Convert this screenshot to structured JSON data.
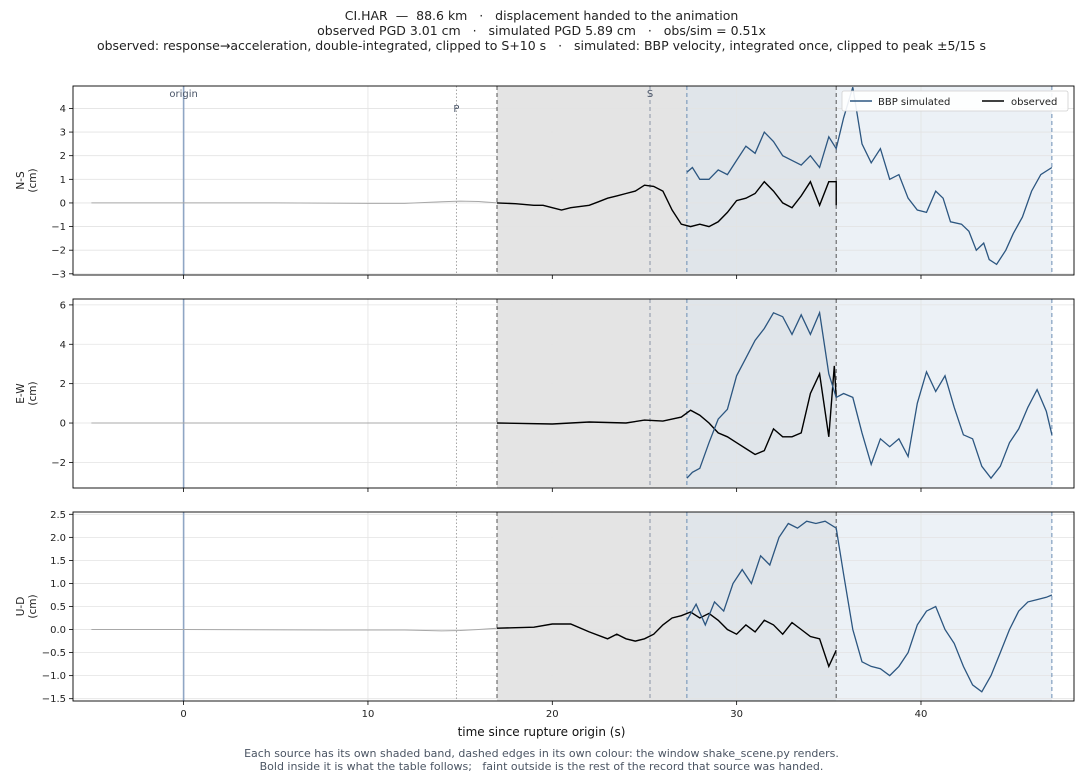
{
  "header": {
    "line1": "CI.HAR  —  88.6 km   ·   displacement handed to the animation",
    "line2": "observed PGD 3.01 cm   ·   simulated PGD 5.89 cm   ·   obs/sim = 0.51x",
    "line3": "observed: response→acceleration, double-integrated, clipped to S+10 s   ·   simulated: BBP velocity, integrated once, clipped to peak ±5/15 s"
  },
  "footer": {
    "line1": "Each source has its own shaded band, dashed edges in its own colour: the window shake_scene.py renders.",
    "line2": "Bold inside it is what the table follows;   faint outside is the rest of the record that source was handed."
  },
  "colors": {
    "simulated": "#2c5680",
    "observed": "#000000",
    "observed_faint": "#a8a8a8",
    "obs_band": "#e4e4e4",
    "sim_band": "#dde5ee",
    "origin_line": "#8fa6c4",
    "p_line": "#9b9b9b",
    "s_line": "#8a93a6",
    "grid": "#e3e3e3"
  },
  "chart_data": {
    "type": "line",
    "xlabel": "time since rupture origin (s)",
    "xlim": [
      -6,
      48.3
    ],
    "xticks": [
      0,
      10,
      20,
      30,
      40
    ],
    "markers": [
      {
        "label": "origin",
        "t": 0
      },
      {
        "label": "P",
        "t": 14.8
      },
      {
        "label": "S",
        "t": 25.3
      }
    ],
    "observed_window": [
      17.0,
      35.4
    ],
    "simulated_window": [
      27.3,
      47.1
    ],
    "legend": {
      "position": "top-right",
      "entries": [
        "BBP simulated",
        "observed"
      ]
    },
    "panels": [
      {
        "ylabel_line1": "N-S",
        "ylabel_line2": "(cm)",
        "ylim": [
          -3.05,
          4.95
        ],
        "yticks": [
          -3,
          -2,
          -1,
          0,
          1,
          2,
          3,
          4
        ],
        "ytick_labels": [
          "−3",
          "−2",
          "−1",
          "0",
          "1",
          "2",
          "3",
          "4"
        ],
        "observed": [
          [
            -5,
            0
          ],
          [
            0,
            0
          ],
          [
            5,
            0
          ],
          [
            10,
            -0.02
          ],
          [
            12,
            -0.02
          ],
          [
            14,
            0.05
          ],
          [
            15,
            0.08
          ],
          [
            16,
            0.06
          ],
          [
            17,
            0
          ],
          [
            18,
            -0.03
          ],
          [
            19,
            -0.1
          ],
          [
            19.5,
            -0.1
          ],
          [
            20,
            -0.2
          ],
          [
            20.5,
            -0.3
          ],
          [
            21,
            -0.2
          ],
          [
            22,
            -0.1
          ],
          [
            22.5,
            0.05
          ],
          [
            23,
            0.2
          ],
          [
            23.5,
            0.3
          ],
          [
            24,
            0.4
          ],
          [
            24.5,
            0.5
          ],
          [
            25,
            0.75
          ],
          [
            25.5,
            0.7
          ],
          [
            26,
            0.5
          ],
          [
            26.5,
            -0.3
          ],
          [
            27,
            -0.9
          ],
          [
            27.5,
            -1
          ],
          [
            28,
            -0.9
          ],
          [
            28.5,
            -1
          ],
          [
            29,
            -0.8
          ],
          [
            29.5,
            -0.4
          ],
          [
            30,
            0.1
          ],
          [
            30.5,
            0.2
          ],
          [
            31,
            0.4
          ],
          [
            31.5,
            0.9
          ],
          [
            32,
            0.5
          ],
          [
            32.5,
            0
          ],
          [
            33,
            -0.2
          ],
          [
            33.5,
            0.3
          ],
          [
            34,
            0.9
          ],
          [
            34.5,
            -0.1
          ],
          [
            35,
            0.9
          ],
          [
            35.4,
            0.9
          ],
          [
            35.4,
            -0.1
          ]
        ],
        "simulated": [
          [
            27.3,
            1.3
          ],
          [
            27.6,
            1.5
          ],
          [
            28,
            1
          ],
          [
            28.5,
            1
          ],
          [
            29,
            1.4
          ],
          [
            29.5,
            1.2
          ],
          [
            30,
            1.8
          ],
          [
            30.5,
            2.4
          ],
          [
            31,
            2.1
          ],
          [
            31.5,
            3
          ],
          [
            32,
            2.6
          ],
          [
            32.5,
            2
          ],
          [
            33,
            1.8
          ],
          [
            33.5,
            1.6
          ],
          [
            34,
            2
          ],
          [
            34.5,
            1.5
          ],
          [
            35,
            2.8
          ],
          [
            35.4,
            2.3
          ],
          [
            35.8,
            3.6
          ],
          [
            36.3,
            4.9
          ],
          [
            36.8,
            2.5
          ],
          [
            37.3,
            1.7
          ],
          [
            37.8,
            2.3
          ],
          [
            38.3,
            1
          ],
          [
            38.8,
            1.2
          ],
          [
            39.3,
            0.2
          ],
          [
            39.8,
            -0.3
          ],
          [
            40.3,
            -0.4
          ],
          [
            40.8,
            0.5
          ],
          [
            41.2,
            0.2
          ],
          [
            41.6,
            -0.8
          ],
          [
            42.2,
            -0.9
          ],
          [
            42.6,
            -1.2
          ],
          [
            43,
            -2
          ],
          [
            43.4,
            -1.7
          ],
          [
            43.7,
            -2.4
          ],
          [
            44.1,
            -2.6
          ],
          [
            44.6,
            -2
          ],
          [
            45,
            -1.3
          ],
          [
            45.5,
            -0.6
          ],
          [
            46,
            0.5
          ],
          [
            46.5,
            1.2
          ],
          [
            47.1,
            1.5
          ]
        ]
      },
      {
        "ylabel_line1": "E-W",
        "ylabel_line2": "(cm)",
        "ylim": [
          -3.3,
          6.3
        ],
        "yticks": [
          -2,
          0,
          2,
          4,
          6
        ],
        "ytick_labels": [
          "−2",
          "0",
          "2",
          "4",
          "6"
        ],
        "observed": [
          [
            -5,
            0
          ],
          [
            0,
            0
          ],
          [
            10,
            0
          ],
          [
            17,
            0
          ],
          [
            20,
            -0.05
          ],
          [
            22,
            0.05
          ],
          [
            24,
            0
          ],
          [
            25,
            0.15
          ],
          [
            26,
            0.1
          ],
          [
            27,
            0.3
          ],
          [
            27.5,
            0.65
          ],
          [
            28,
            0.4
          ],
          [
            28.5,
            0
          ],
          [
            29,
            -0.5
          ],
          [
            29.5,
            -0.7
          ],
          [
            30,
            -1
          ],
          [
            30.5,
            -1.3
          ],
          [
            31,
            -1.6
          ],
          [
            31.5,
            -1.4
          ],
          [
            32,
            -0.3
          ],
          [
            32.5,
            -0.7
          ],
          [
            33,
            -0.7
          ],
          [
            33.5,
            -0.5
          ],
          [
            34,
            1.5
          ],
          [
            34.5,
            2.5
          ],
          [
            35,
            -0.7
          ],
          [
            35.3,
            2.9
          ],
          [
            35.4,
            1.3
          ]
        ],
        "simulated": [
          [
            27.3,
            -2.8
          ],
          [
            27.6,
            -2.5
          ],
          [
            28,
            -2.3
          ],
          [
            28.5,
            -1
          ],
          [
            29,
            0.2
          ],
          [
            29.5,
            0.7
          ],
          [
            30,
            2.4
          ],
          [
            30.5,
            3.3
          ],
          [
            31,
            4.2
          ],
          [
            31.5,
            4.8
          ],
          [
            32,
            5.6
          ],
          [
            32.5,
            5.4
          ],
          [
            33,
            4.5
          ],
          [
            33.5,
            5.5
          ],
          [
            34,
            4.5
          ],
          [
            34.5,
            5.6
          ],
          [
            35,
            2.5
          ],
          [
            35.4,
            1.3
          ],
          [
            35.8,
            1.5
          ],
          [
            36.3,
            1.3
          ],
          [
            36.8,
            -0.5
          ],
          [
            37.3,
            -2.1
          ],
          [
            37.8,
            -0.8
          ],
          [
            38.3,
            -1.2
          ],
          [
            38.8,
            -0.8
          ],
          [
            39.3,
            -1.7
          ],
          [
            39.8,
            1
          ],
          [
            40.3,
            2.6
          ],
          [
            40.8,
            1.6
          ],
          [
            41.3,
            2.4
          ],
          [
            41.8,
            0.8
          ],
          [
            42.3,
            -0.6
          ],
          [
            42.8,
            -0.8
          ],
          [
            43.3,
            -2.2
          ],
          [
            43.8,
            -2.8
          ],
          [
            44.3,
            -2.2
          ],
          [
            44.8,
            -1
          ],
          [
            45.3,
            -0.3
          ],
          [
            45.8,
            0.8
          ],
          [
            46.3,
            1.7
          ],
          [
            46.8,
            0.6
          ],
          [
            47.1,
            -0.6
          ]
        ]
      },
      {
        "ylabel_line1": "U-D",
        "ylabel_line2": "(cm)",
        "ylim": [
          -1.55,
          2.55
        ],
        "yticks": [
          -1.5,
          -1,
          -0.5,
          0,
          0.5,
          1,
          1.5,
          2,
          2.5
        ],
        "ytick_labels": [
          "−1.5",
          "−1.0",
          "−0.5",
          "0.0",
          "0.5",
          "1.0",
          "1.5",
          "2.0",
          "2.5"
        ],
        "observed": [
          [
            -5,
            0
          ],
          [
            0,
            0
          ],
          [
            8,
            -0.01
          ],
          [
            12,
            -0.01
          ],
          [
            14,
            -0.03
          ],
          [
            15,
            -0.02
          ],
          [
            16,
            0
          ],
          [
            17,
            0.03
          ],
          [
            18,
            0.04
          ],
          [
            19,
            0.05
          ],
          [
            20,
            0.12
          ],
          [
            21,
            0.12
          ],
          [
            22,
            -0.05
          ],
          [
            23,
            -0.2
          ],
          [
            23.5,
            -0.1
          ],
          [
            24,
            -0.2
          ],
          [
            24.5,
            -0.25
          ],
          [
            25,
            -0.2
          ],
          [
            25.5,
            -0.1
          ],
          [
            26,
            0.1
          ],
          [
            26.5,
            0.25
          ],
          [
            27,
            0.3
          ],
          [
            27.5,
            0.38
          ],
          [
            28,
            0.25
          ],
          [
            28.5,
            0.35
          ],
          [
            29,
            0.2
          ],
          [
            29.5,
            0
          ],
          [
            30,
            -0.1
          ],
          [
            30.5,
            0.1
          ],
          [
            31,
            -0.05
          ],
          [
            31.5,
            0.2
          ],
          [
            32,
            0.1
          ],
          [
            32.5,
            -0.1
          ],
          [
            33,
            0.15
          ],
          [
            33.5,
            0
          ],
          [
            34,
            -0.15
          ],
          [
            34.5,
            -0.2
          ],
          [
            35,
            -0.8
          ],
          [
            35.4,
            -0.45
          ]
        ],
        "simulated": [
          [
            27.3,
            0.2
          ],
          [
            27.8,
            0.55
          ],
          [
            28.3,
            0.1
          ],
          [
            28.8,
            0.6
          ],
          [
            29.3,
            0.4
          ],
          [
            29.8,
            1
          ],
          [
            30.3,
            1.3
          ],
          [
            30.8,
            1
          ],
          [
            31.3,
            1.6
          ],
          [
            31.8,
            1.4
          ],
          [
            32.3,
            2
          ],
          [
            32.8,
            2.3
          ],
          [
            33.3,
            2.2
          ],
          [
            33.8,
            2.35
          ],
          [
            34.3,
            2.3
          ],
          [
            34.8,
            2.35
          ],
          [
            35.4,
            2.2
          ],
          [
            35.8,
            1.2
          ],
          [
            36.3,
            0
          ],
          [
            36.8,
            -0.7
          ],
          [
            37.3,
            -0.8
          ],
          [
            37.8,
            -0.85
          ],
          [
            38.3,
            -1
          ],
          [
            38.8,
            -0.8
          ],
          [
            39.3,
            -0.5
          ],
          [
            39.8,
            0.1
          ],
          [
            40.3,
            0.4
          ],
          [
            40.8,
            0.5
          ],
          [
            41.3,
            0
          ],
          [
            41.8,
            -0.3
          ],
          [
            42.3,
            -0.8
          ],
          [
            42.8,
            -1.2
          ],
          [
            43.3,
            -1.35
          ],
          [
            43.8,
            -1
          ],
          [
            44.3,
            -0.5
          ],
          [
            44.8,
            0
          ],
          [
            45.3,
            0.4
          ],
          [
            45.8,
            0.6
          ],
          [
            46.3,
            0.65
          ],
          [
            46.8,
            0.7
          ],
          [
            47.1,
            0.75
          ]
        ]
      }
    ]
  }
}
